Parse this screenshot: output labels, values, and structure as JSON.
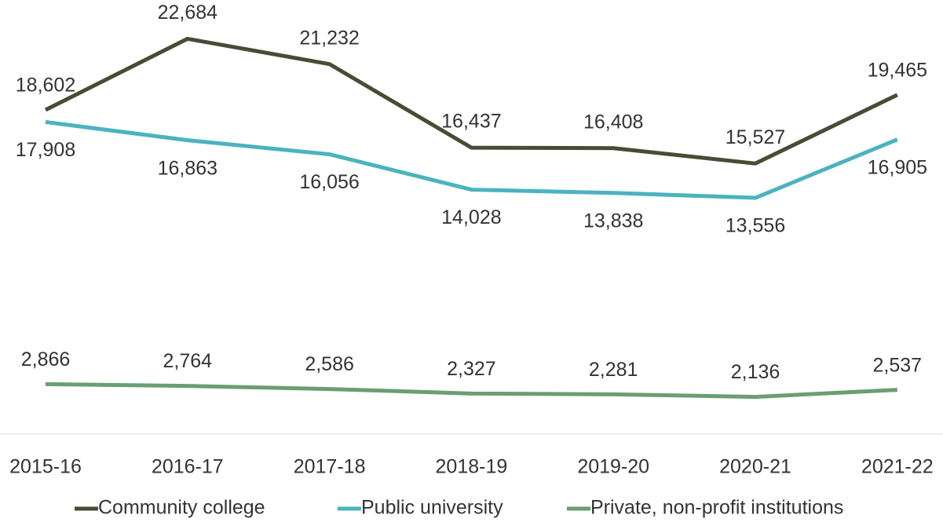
{
  "chart_data": {
    "type": "line",
    "categories": [
      "2015-16",
      "2016-17",
      "2017-18",
      "2018-19",
      "2019-20",
      "2020-21",
      "2021-22"
    ],
    "series": [
      {
        "name": "Community college",
        "color": "#4a4a36",
        "values": [
          18602,
          22684,
          21232,
          16437,
          16408,
          15527,
          19465
        ],
        "value_labels": [
          "18,602",
          "22,684",
          "21,232",
          "16,437",
          "16,408",
          "15,527",
          "19,465"
        ]
      },
      {
        "name": "Public university",
        "color": "#4bb3bf",
        "values": [
          17908,
          16863,
          16056,
          14028,
          13838,
          13556,
          16905
        ],
        "value_labels": [
          "17,908",
          "16,863",
          "16,056",
          "14,028",
          "13,838",
          "13,556",
          "16,905"
        ]
      },
      {
        "name": "Private, non-profit institutions",
        "color": "#6a9e73",
        "values": [
          2866,
          2764,
          2586,
          2327,
          2281,
          2136,
          2537
        ],
        "value_labels": [
          "2,866",
          "2,764",
          "2,586",
          "2,327",
          "2,281",
          "2,136",
          "2,537"
        ]
      }
    ],
    "ylim": [
      0,
      25000
    ],
    "legend": "bottom"
  }
}
